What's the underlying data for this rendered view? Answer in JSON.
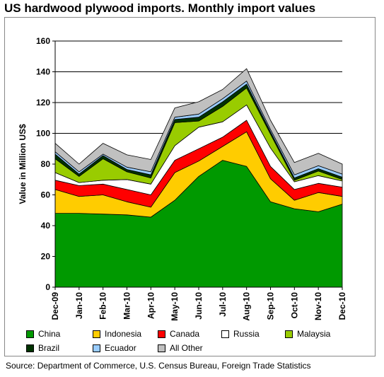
{
  "title": "US hardwood plywood imports. Monthly import values",
  "source": "Source: Department of Commerce, U.S. Census Bureau, Foreign Trade Statistics",
  "chart_data": {
    "type": "area",
    "stacked": true,
    "ylabel": "Value in Million US$",
    "xlabel": "",
    "ylim": [
      0,
      160
    ],
    "yticks": [
      "0",
      "20",
      "40",
      "60",
      "80",
      "100",
      "120",
      "140",
      "160"
    ],
    "grid": true,
    "legend_position": "bottom",
    "categories": [
      "Dec-09",
      "Jan-10",
      "Feb-10",
      "Mar-10",
      "Apr-10",
      "May-10",
      "Jun-10",
      "Jul-10",
      "Aug-10",
      "Sep-10",
      "Oct-10",
      "Nov-10",
      "Dec-10"
    ],
    "series": [
      {
        "name": "China",
        "color": "#009900",
        "values": [
          48,
          48,
          47.5,
          47,
          45.5,
          56.5,
          72,
          82.5,
          78.5,
          55.5,
          51,
          49,
          54
        ]
      },
      {
        "name": "Indonesia",
        "color": "#FFCC00",
        "values": [
          15.5,
          11,
          12.5,
          8.5,
          6.5,
          18,
          10,
          9,
          22.5,
          15,
          5.5,
          12.5,
          5
        ]
      },
      {
        "name": "Canada",
        "color": "#FF0000",
        "values": [
          6,
          7,
          7,
          8,
          8,
          8,
          8,
          6,
          7.5,
          8,
          7,
          6,
          6
        ]
      },
      {
        "name": "Russia",
        "color": "#FFFFFF",
        "values": [
          5,
          2,
          2.5,
          6.5,
          7,
          9.5,
          14,
          10,
          10,
          12,
          5,
          5,
          4
        ]
      },
      {
        "name": "Malaysia",
        "color": "#99CC00",
        "values": [
          9,
          4,
          14,
          5,
          4,
          15,
          4,
          10,
          11,
          9,
          1,
          3,
          1
        ]
      },
      {
        "name": "Brazil",
        "color": "#003300",
        "values": [
          3,
          1.5,
          2,
          1.5,
          2,
          2,
          2.5,
          3,
          2.5,
          1.5,
          1.5,
          1.5,
          1.5
        ]
      },
      {
        "name": "Ecuador",
        "color": "#99CCFF",
        "values": [
          1.5,
          1.5,
          1,
          1.5,
          2,
          1.5,
          2,
          2,
          2,
          1.5,
          2,
          2,
          2
        ]
      },
      {
        "name": "All Other",
        "color": "#C0C0C0",
        "values": [
          5.5,
          5,
          7,
          8,
          8,
          6,
          8,
          6,
          8,
          6,
          8,
          8,
          6.5
        ]
      }
    ]
  }
}
